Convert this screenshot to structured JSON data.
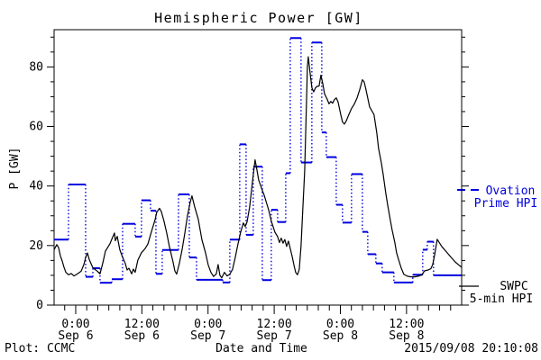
{
  "title": "Hemispheric Power [GW]",
  "y_axis": {
    "label": "P [GW]",
    "tick_labels": [
      "0",
      "20",
      "40",
      "60",
      "80"
    ]
  },
  "x_axis": {
    "label": "Date and Time",
    "major_ticks": [
      {
        "t": 0,
        "time": "0:00",
        "date": "Sep 6"
      },
      {
        "t": 12,
        "time": "12:00",
        "date": "Sep 6"
      },
      {
        "t": 24,
        "time": "0:00",
        "date": "Sep 7"
      },
      {
        "t": 36,
        "time": "12:00",
        "date": "Sep 7"
      },
      {
        "t": 48,
        "time": "0:00",
        "date": "Sep 8"
      },
      {
        "t": 60,
        "time": "12:00",
        "date": "Sep 8"
      }
    ],
    "minor_step_hours": 2
  },
  "legend": {
    "ovation": {
      "line1": "Ovation",
      "line2": "Prime HPI",
      "color": "#0000e0"
    },
    "swpc": {
      "line1": "SWPC",
      "line2": "5-min HPI",
      "color": "#000000"
    }
  },
  "footer": {
    "left": "Plot: CCMC",
    "center": "Date and Time",
    "right": "2015/09/08 20:10:08"
  },
  "chart_data": {
    "type": "line",
    "title": "Hemispheric Power [GW]",
    "xlabel": "Date and Time",
    "ylabel": "P [GW]",
    "x_unit": "hours since 2015-09-06 00:00 UT",
    "xlim": [
      -3.92,
      70
    ],
    "ylim": [
      0,
      92.5
    ],
    "y_major_ticks": [
      0,
      20,
      40,
      60,
      80
    ],
    "y_minor_step": 5,
    "grid": false,
    "legend_position": "right-outside",
    "series": [
      {
        "name": "Ovation Prime HPI",
        "color": "#0000e0",
        "style": "steps",
        "segments": [
          [
            -3.92,
            -1.31,
            22
          ],
          [
            -1.31,
            1.8,
            40.5
          ],
          [
            1.8,
            3.11,
            9.5
          ],
          [
            3.11,
            4.41,
            12.4
          ],
          [
            4.41,
            6.54,
            7.5
          ],
          [
            6.54,
            8.5,
            8.7
          ],
          [
            8.5,
            10.79,
            27.3
          ],
          [
            10.79,
            11.93,
            23
          ],
          [
            11.93,
            13.57,
            35.2
          ],
          [
            13.57,
            14.55,
            31.7
          ],
          [
            14.55,
            15.69,
            10.5
          ],
          [
            15.69,
            18.64,
            18.5
          ],
          [
            18.64,
            20.6,
            37.2
          ],
          [
            20.6,
            21.91,
            16
          ],
          [
            21.91,
            26.65,
            8.5
          ],
          [
            26.65,
            27.95,
            7.6
          ],
          [
            27.95,
            29.75,
            22
          ],
          [
            29.75,
            30.9,
            54
          ],
          [
            30.9,
            32.2,
            23.6
          ],
          [
            32.2,
            33.84,
            46.5
          ],
          [
            33.84,
            35.47,
            8.4
          ],
          [
            35.47,
            36.62,
            32
          ],
          [
            36.62,
            38.09,
            27.9
          ],
          [
            38.09,
            38.91,
            44.3
          ],
          [
            38.91,
            40.87,
            89.7
          ],
          [
            40.87,
            42.83,
            47.9
          ],
          [
            42.83,
            44.63,
            88.2
          ],
          [
            44.63,
            45.45,
            58
          ],
          [
            45.45,
            47.25,
            49.7
          ],
          [
            47.25,
            48.39,
            33.7
          ],
          [
            48.39,
            50.02,
            27.7
          ],
          [
            50.02,
            51.99,
            44
          ],
          [
            51.99,
            52.97,
            24.6
          ],
          [
            52.97,
            54.44,
            17.1
          ],
          [
            54.44,
            55.58,
            14
          ],
          [
            55.58,
            57.71,
            11
          ],
          [
            57.71,
            61.14,
            7.6
          ],
          [
            61.14,
            62.94,
            10.2
          ],
          [
            62.94,
            63.76,
            18.6
          ],
          [
            63.76,
            64.9,
            21.3
          ],
          [
            64.9,
            69.97,
            10
          ]
        ]
      },
      {
        "name": "SWPC 5-min HPI",
        "color": "#000000",
        "style": "line",
        "points": [
          [
            -3.92,
            18.6
          ],
          [
            -3.43,
            20.3
          ],
          [
            -3.11,
            19.3
          ],
          [
            -2.78,
            16.5
          ],
          [
            -2.45,
            14.8
          ],
          [
            -2.13,
            12.8
          ],
          [
            -1.8,
            11.0
          ],
          [
            -1.31,
            10.2
          ],
          [
            -0.82,
            10.6
          ],
          [
            -0.33,
            9.8
          ],
          [
            0.16,
            10.3
          ],
          [
            0.65,
            10.9
          ],
          [
            0.98,
            11.4
          ],
          [
            1.47,
            13.6
          ],
          [
            1.8,
            16.0
          ],
          [
            2.13,
            17.5
          ],
          [
            2.45,
            15.3
          ],
          [
            3.11,
            12.5
          ],
          [
            3.92,
            11.4
          ],
          [
            4.41,
            10.5
          ],
          [
            4.9,
            14.0
          ],
          [
            5.39,
            18.1
          ],
          [
            6.21,
            20.6
          ],
          [
            6.7,
            22.8
          ],
          [
            7.03,
            24.2
          ],
          [
            7.19,
            21.6
          ],
          [
            7.52,
            23.1
          ],
          [
            8.01,
            18.6
          ],
          [
            8.5,
            16.1
          ],
          [
            8.99,
            14.0
          ],
          [
            9.32,
            11.8
          ],
          [
            9.65,
            12.4
          ],
          [
            10.14,
            10.5
          ],
          [
            10.46,
            12.1
          ],
          [
            10.79,
            11.0
          ],
          [
            11.28,
            15.1
          ],
          [
            11.93,
            17.6
          ],
          [
            12.59,
            19.0
          ],
          [
            13.08,
            20.5
          ],
          [
            13.73,
            24.6
          ],
          [
            14.39,
            28.7
          ],
          [
            14.71,
            31.2
          ],
          [
            15.2,
            32.5
          ],
          [
            15.53,
            31.4
          ],
          [
            16.02,
            28.2
          ],
          [
            16.51,
            24.2
          ],
          [
            17.0,
            19.6
          ],
          [
            17.65,
            14.5
          ],
          [
            17.98,
            11.5
          ],
          [
            18.31,
            10.4
          ],
          [
            18.8,
            14.0
          ],
          [
            19.29,
            18.5
          ],
          [
            19.78,
            24.0
          ],
          [
            20.27,
            30.0
          ],
          [
            20.76,
            34.5
          ],
          [
            21.09,
            36.7
          ],
          [
            21.58,
            33.0
          ],
          [
            22.23,
            28.8
          ],
          [
            22.89,
            22.0
          ],
          [
            23.54,
            17.6
          ],
          [
            24.03,
            13.5
          ],
          [
            24.52,
            11.0
          ],
          [
            25.01,
            9.6
          ],
          [
            25.5,
            10.5
          ],
          [
            25.83,
            13.6
          ],
          [
            26.16,
            10.0
          ],
          [
            26.49,
            9.2
          ],
          [
            26.98,
            11.0
          ],
          [
            27.47,
            9.8
          ],
          [
            27.95,
            10.4
          ],
          [
            28.44,
            12.0
          ],
          [
            28.93,
            16.0
          ],
          [
            29.42,
            20.5
          ],
          [
            29.91,
            24.5
          ],
          [
            30.4,
            27.6
          ],
          [
            30.73,
            26.4
          ],
          [
            31.06,
            27.8
          ],
          [
            31.55,
            33.0
          ],
          [
            32.04,
            41.2
          ],
          [
            32.53,
            48.8
          ],
          [
            32.86,
            45.5
          ],
          [
            33.19,
            42.0
          ],
          [
            33.51,
            40.3
          ],
          [
            33.84,
            38.5
          ],
          [
            34.17,
            37.0
          ],
          [
            34.66,
            34.0
          ],
          [
            34.99,
            32.0
          ],
          [
            35.47,
            28.2
          ],
          [
            36.13,
            24.5
          ],
          [
            36.62,
            23.0
          ],
          [
            36.95,
            21.0
          ],
          [
            37.27,
            22.5
          ],
          [
            37.6,
            20.8
          ],
          [
            37.93,
            22.0
          ],
          [
            38.25,
            19.7
          ],
          [
            38.58,
            21.5
          ],
          [
            38.91,
            19.0
          ],
          [
            39.24,
            16.5
          ],
          [
            39.56,
            13.6
          ],
          [
            39.89,
            11.0
          ],
          [
            40.22,
            10.2
          ],
          [
            40.55,
            12.0
          ],
          [
            40.87,
            20.0
          ],
          [
            41.2,
            32.7
          ],
          [
            41.53,
            45.0
          ],
          [
            41.86,
            68.0
          ],
          [
            42.02,
            80.0
          ],
          [
            42.18,
            83.4
          ],
          [
            42.51,
            78.0
          ],
          [
            42.83,
            73.0
          ],
          [
            43.16,
            71.6
          ],
          [
            43.49,
            73.0
          ],
          [
            43.81,
            73.5
          ],
          [
            44.14,
            73.6
          ],
          [
            44.47,
            77.2
          ],
          [
            44.8,
            74.5
          ],
          [
            45.12,
            71.0
          ],
          [
            45.61,
            69.1
          ],
          [
            45.94,
            67.6
          ],
          [
            46.27,
            68.4
          ],
          [
            46.6,
            67.8
          ],
          [
            46.92,
            69.0
          ],
          [
            47.25,
            69.6
          ],
          [
            47.58,
            68.3
          ],
          [
            48.07,
            64.0
          ],
          [
            48.39,
            61.5
          ],
          [
            48.72,
            60.8
          ],
          [
            49.05,
            61.8
          ],
          [
            49.54,
            64.0
          ],
          [
            50.02,
            66.0
          ],
          [
            50.52,
            67.5
          ],
          [
            51.01,
            69.5
          ],
          [
            51.5,
            72.3
          ],
          [
            51.99,
            75.7
          ],
          [
            52.31,
            75.0
          ],
          [
            52.64,
            72.5
          ],
          [
            52.97,
            69.5
          ],
          [
            53.3,
            66.6
          ],
          [
            53.79,
            65.0
          ],
          [
            54.11,
            64.0
          ],
          [
            54.6,
            58.0
          ],
          [
            54.93,
            52.5
          ],
          [
            55.42,
            48.0
          ],
          [
            55.75,
            44.0
          ],
          [
            56.24,
            37.5
          ],
          [
            56.57,
            33.7
          ],
          [
            57.06,
            28.5
          ],
          [
            57.39,
            25.2
          ],
          [
            57.88,
            21.0
          ],
          [
            58.2,
            17.6
          ],
          [
            58.69,
            14.5
          ],
          [
            59.02,
            12.5
          ],
          [
            59.51,
            10.3
          ],
          [
            60.16,
            9.7
          ],
          [
            60.82,
            9.5
          ],
          [
            61.47,
            9.5
          ],
          [
            62.13,
            9.7
          ],
          [
            62.78,
            10.2
          ],
          [
            63.27,
            11.5
          ],
          [
            63.92,
            11.8
          ],
          [
            64.41,
            12.2
          ],
          [
            64.74,
            13.5
          ],
          [
            65.07,
            16.6
          ],
          [
            65.56,
            22.1
          ],
          [
            66.38,
            19.7
          ],
          [
            67.19,
            18.0
          ],
          [
            68.01,
            16.2
          ],
          [
            68.83,
            14.5
          ],
          [
            69.64,
            13.2
          ],
          [
            69.97,
            12.8
          ]
        ]
      }
    ]
  }
}
